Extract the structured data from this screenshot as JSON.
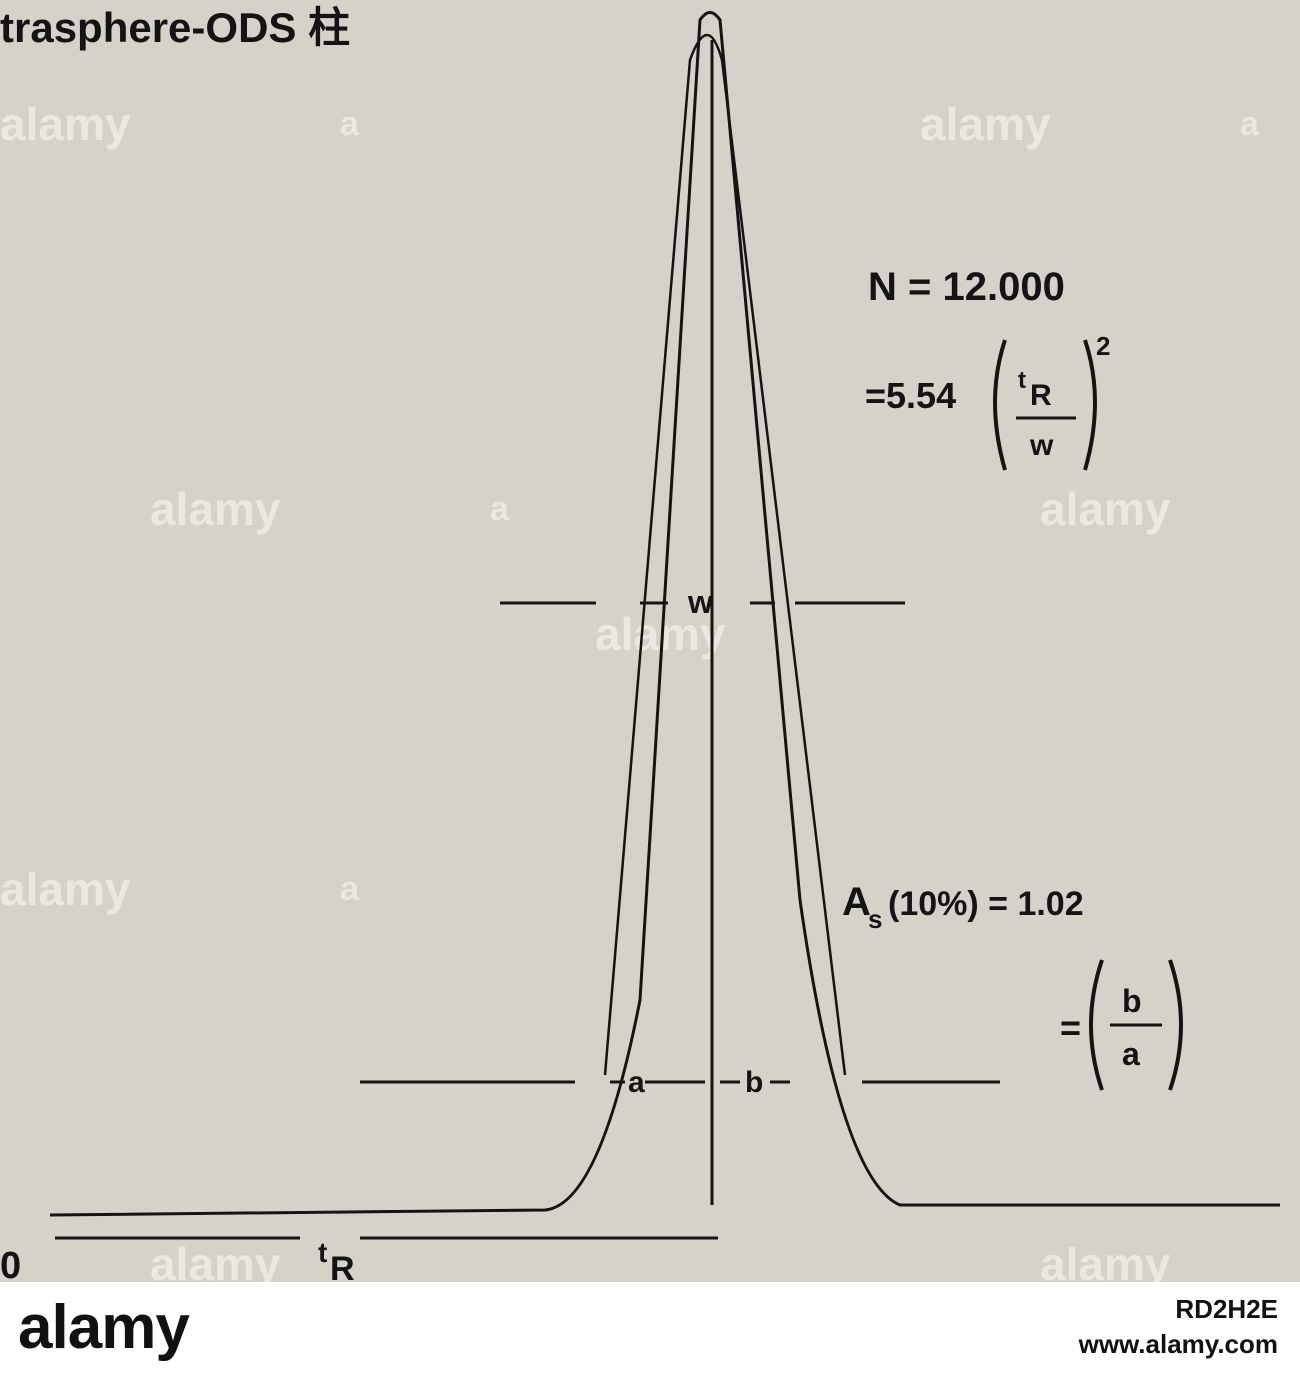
{
  "figure": {
    "column_title": "trasphere-ODS 柱",
    "plate_count_label": "N = 12.000",
    "plate_formula_prefix": "=5.54",
    "tR_symbol": "t",
    "tR_subscript": "R",
    "w_symbol": "w",
    "exponent": "2",
    "w_marker": "w",
    "asym_label": "A",
    "asym_subscript": "s",
    "asym_value": "(10%) = 1.02",
    "ratio_prefix": "=",
    "ratio_num": "b",
    "ratio_den": "a",
    "a_marker": "a",
    "b_marker": "b",
    "origin_label": "0",
    "retention_label_sup": "t",
    "retention_label_sub": "R"
  },
  "watermark": {
    "text": "alamy",
    "small": "a"
  },
  "footer": {
    "logo": "alamy",
    "image_id": "RD2H2E",
    "site": "www.alamy.com"
  },
  "colors": {
    "photo_bg": "#d7d2c9",
    "ink": "#141414",
    "footer_bg": "#ffffff"
  }
}
